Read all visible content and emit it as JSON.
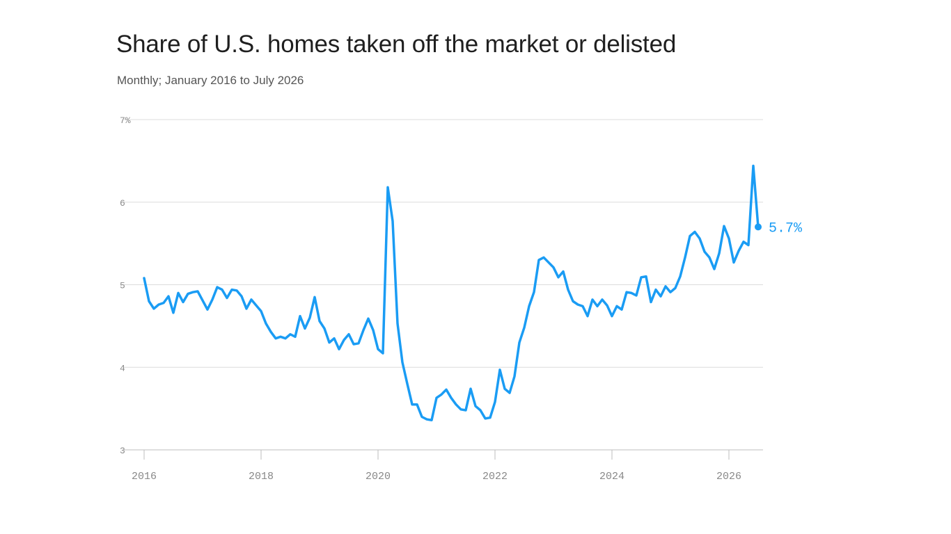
{
  "chart_data": {
    "type": "line",
    "title": "Share of U.S. homes taken off the market or delisted",
    "subtitle": "Monthly; January 2016 to July 2026",
    "xlabel": "",
    "ylabel": "",
    "ylim": [
      3,
      7
    ],
    "y_ticks": [
      {
        "value": 7,
        "label": "7%"
      },
      {
        "value": 6,
        "label": "6"
      },
      {
        "value": 5,
        "label": "5"
      },
      {
        "value": 4,
        "label": "4"
      },
      {
        "value": 3,
        "label": "3"
      }
    ],
    "x_ticks": [
      {
        "value": 2016,
        "label": "2016"
      },
      {
        "value": 2018,
        "label": "2018"
      },
      {
        "value": 2020,
        "label": "2020"
      },
      {
        "value": 2022,
        "label": "2022"
      },
      {
        "value": 2024,
        "label": "2024"
      },
      {
        "value": 2026,
        "label": "2026"
      }
    ],
    "grid": true,
    "line_color": "#1a9cf4",
    "end_label": "5.7%",
    "series": [
      {
        "values": [
          5.08,
          4.8,
          4.71,
          4.76,
          4.78,
          4.86,
          4.66,
          4.9,
          4.79,
          4.89,
          4.91,
          4.92,
          4.81,
          4.7,
          4.82,
          4.97,
          4.94,
          4.84,
          4.94,
          4.93,
          4.86,
          4.71,
          4.82,
          4.75,
          4.68,
          4.53,
          4.43,
          4.35,
          4.37,
          4.35,
          4.4,
          4.37,
          4.62,
          4.47,
          4.6,
          4.85,
          4.56,
          4.47,
          4.3,
          4.35,
          4.22,
          4.33,
          4.4,
          4.28,
          4.29,
          4.45,
          4.59,
          4.45,
          4.22,
          4.17,
          6.18,
          5.77,
          4.53,
          4.06,
          3.8,
          3.55,
          3.55,
          3.4,
          3.37,
          3.36,
          3.63,
          3.67,
          3.73,
          3.63,
          3.55,
          3.49,
          3.48,
          3.74,
          3.53,
          3.48,
          3.38,
          3.39,
          3.58,
          3.97,
          3.74,
          3.69,
          3.89,
          4.3,
          4.48,
          4.74,
          4.91,
          5.3,
          5.33,
          5.27,
          5.21,
          5.09,
          5.16,
          4.94,
          4.8,
          4.76,
          4.74,
          4.62,
          4.82,
          4.74,
          4.82,
          4.75,
          4.62,
          4.74,
          4.7,
          4.91,
          4.9,
          4.87,
          5.09,
          5.1,
          4.79,
          4.94,
          4.86,
          4.98,
          4.91,
          4.96,
          5.1,
          5.33,
          5.59,
          5.64,
          5.56,
          5.4,
          5.33,
          5.19,
          5.38,
          5.71,
          5.56,
          5.27,
          5.41,
          5.52,
          5.48,
          6.44,
          5.7
        ]
      }
    ]
  }
}
